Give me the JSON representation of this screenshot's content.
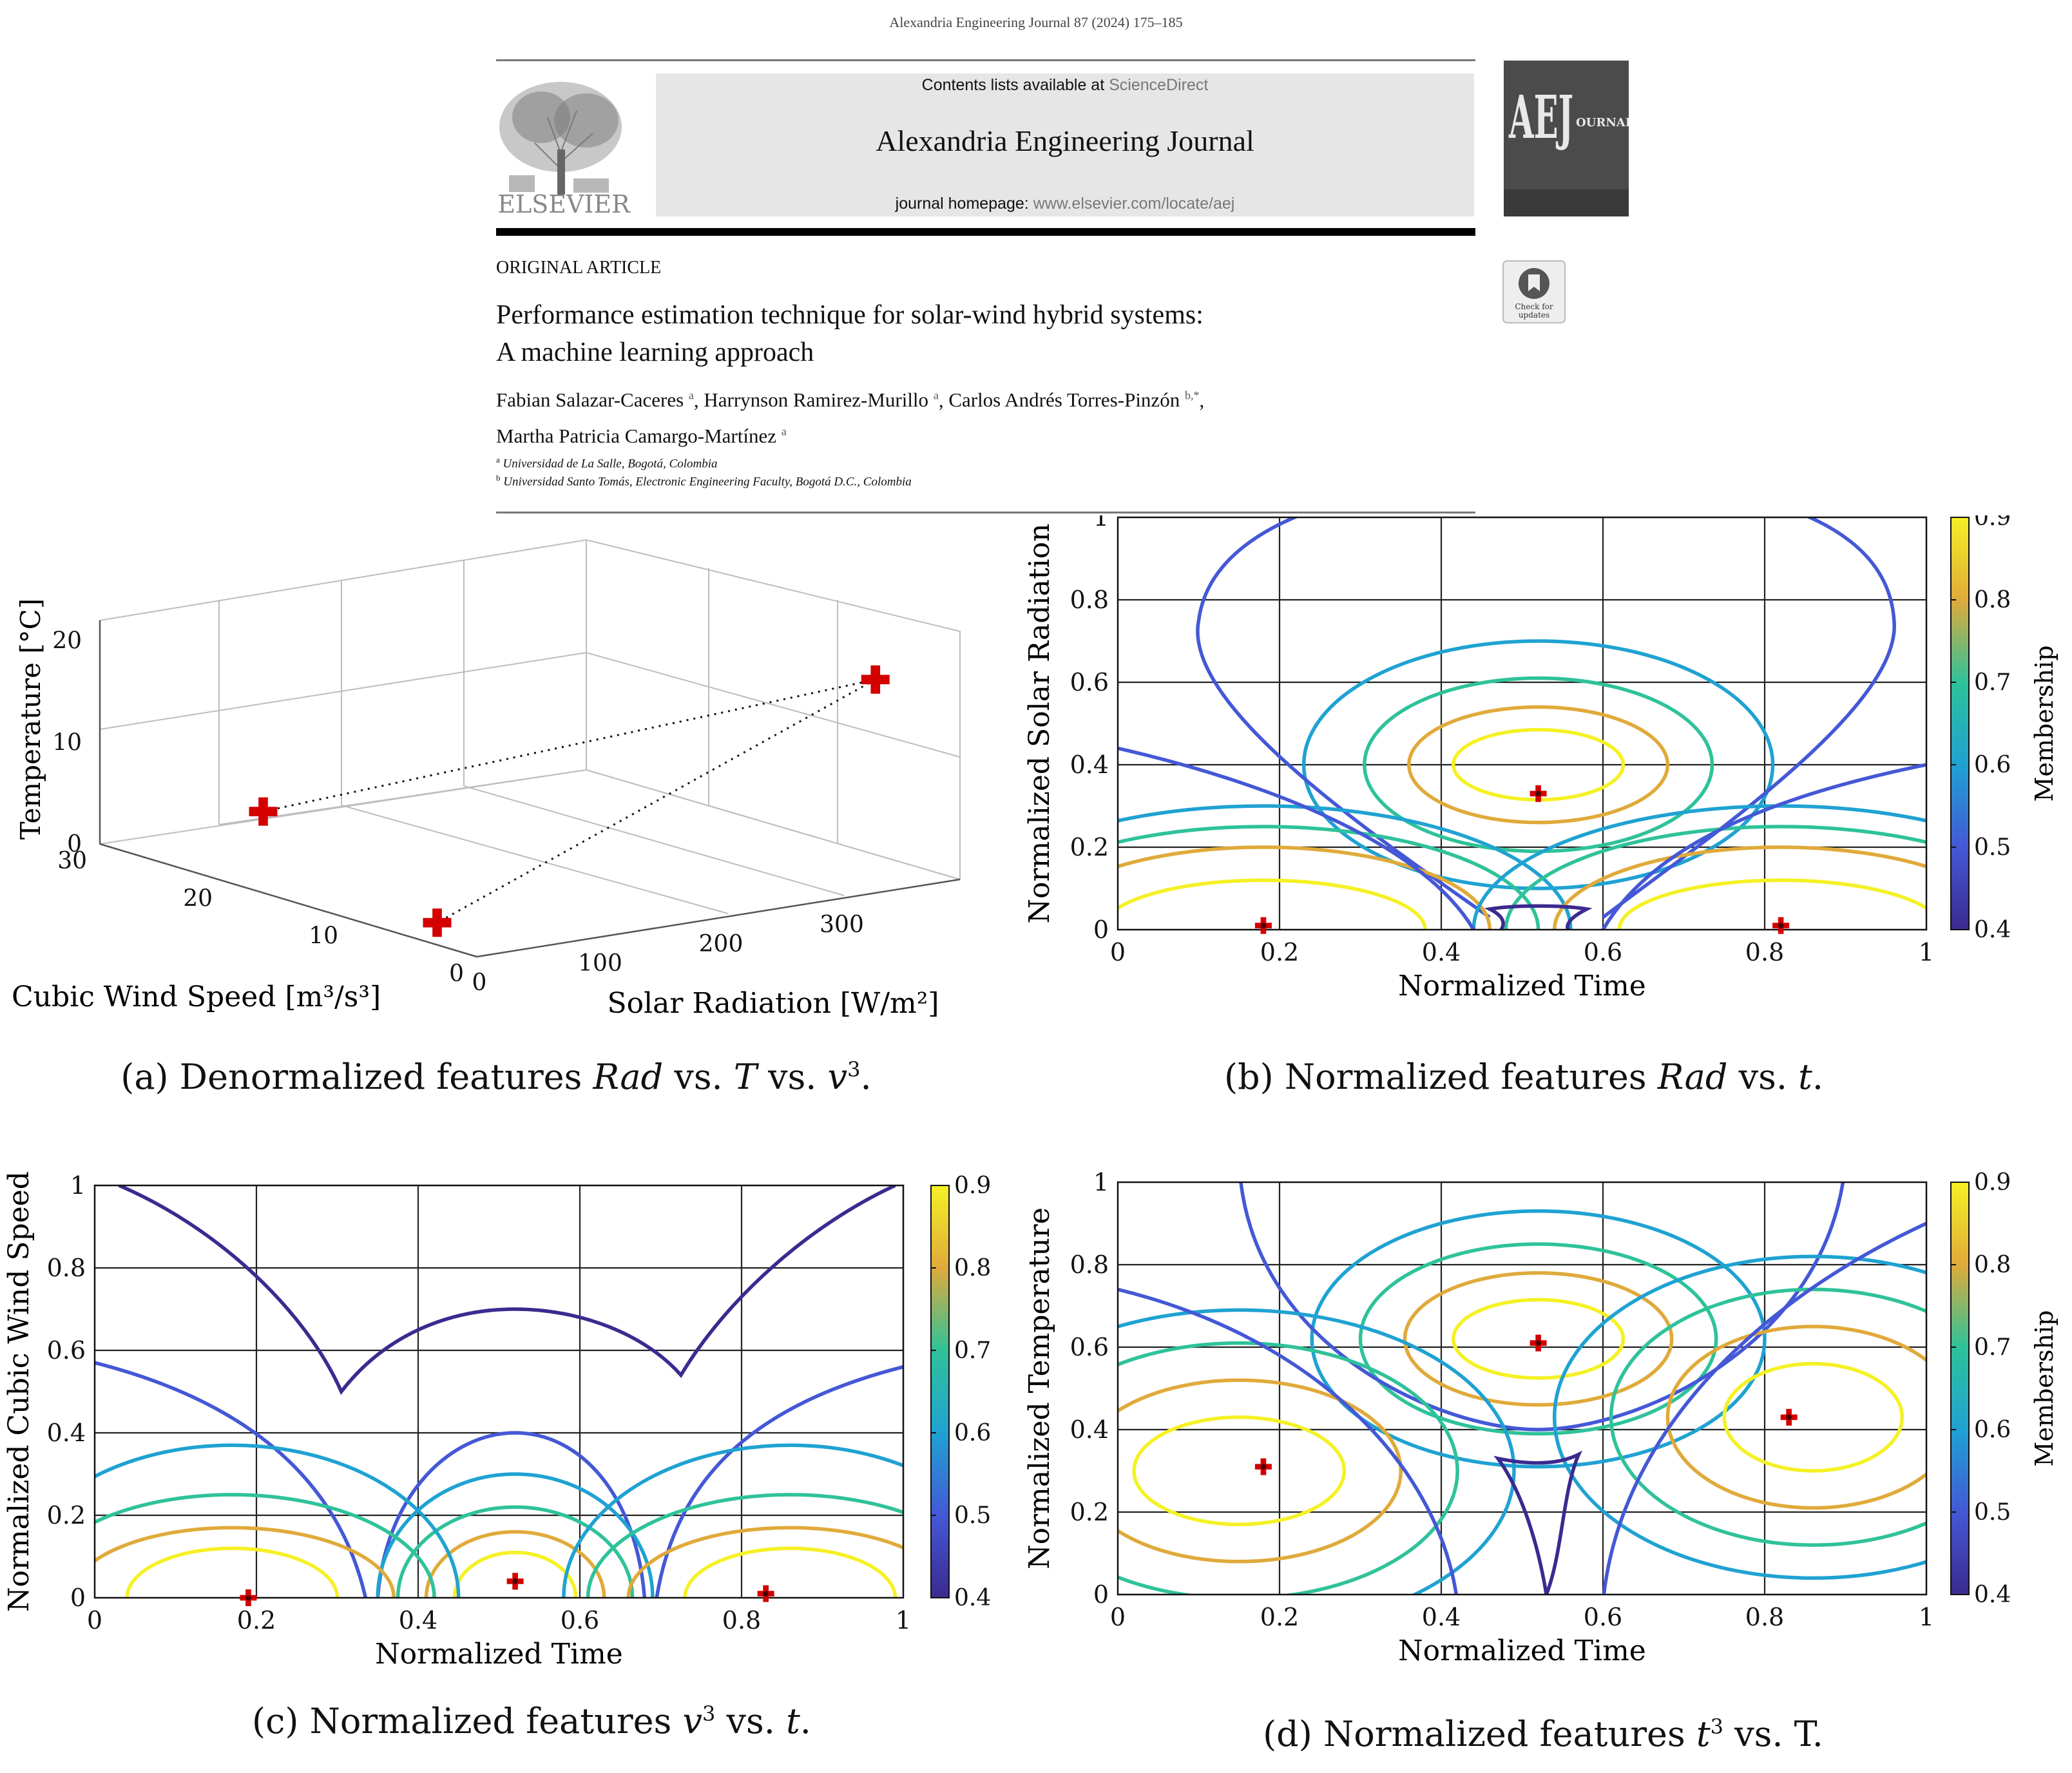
{
  "header": {
    "citation": "Alexandria Engineering Journal 87 (2024) 175–185",
    "contents_prefix": "Contents lists available at ",
    "contents_link": "ScienceDirect",
    "journal_name": "Alexandria Engineering Journal",
    "homepage_prefix": "journal homepage: ",
    "homepage_url": "www.elsevier.com/locate/aej",
    "publisher": "ELSEVIER",
    "cover_letters": "AEJ",
    "cover_word": "OURNAL",
    "check_badge_l1": "Check for",
    "check_badge_l2": "updates"
  },
  "article": {
    "section": "ORIGINAL ARTICLE",
    "title_line1": "Performance estimation technique for solar-wind hybrid systems:",
    "title_line2": "A machine learning approach",
    "authors": [
      {
        "name": "Fabian Salazar-Caceres",
        "aff": "a"
      },
      {
        "name": "Harrynson Ramirez-Murillo",
        "aff": "a"
      },
      {
        "name": "Carlos Andrés Torres-Pinzón",
        "aff": "b,*"
      },
      {
        "name": "Martha Patricia Camargo-Martínez",
        "aff": "a"
      }
    ],
    "affiliations": [
      {
        "mark": "a",
        "text": "Universidad de La Salle, Bogotá, Colombia"
      },
      {
        "mark": "b",
        "text": "Universidad Santo Tomás, Electronic Engineering Faculty, Bogotá D.C., Colombia"
      }
    ]
  },
  "colors": {
    "marker": "#d40000",
    "levels": {
      "0.4": "#3b2a8f",
      "0.5": "#4458d6",
      "0.6": "#1fa2d2",
      "0.7": "#2fc29a",
      "0.8": "#e0aa3a",
      "0.9": "#f5f125"
    }
  },
  "chart_data": [
    {
      "type": "scatter",
      "panel": "a",
      "caption_prefix": "(a) Denormalized features ",
      "caption_parts": [
        "Rad",
        " vs. ",
        "T",
        " vs. ",
        "v",
        "3",
        "."
      ],
      "xlabel": "Solar Radiation [W/m²]",
      "ylabel": "Cubic Wind Speed [m³/s³]",
      "zlabel": "Temperature [°C]",
      "x_ticks": [
        "0",
        "100",
        "200",
        "300"
      ],
      "y_ticks": [
        "0",
        "10",
        "20",
        "30"
      ],
      "z_ticks": [
        "0",
        "10",
        "20"
      ],
      "points": [
        {
          "rad": 330,
          "v3": 0,
          "T": 21
        },
        {
          "rad": 0,
          "v3": 17,
          "T": 8
        },
        {
          "rad": 40,
          "v3": 7,
          "T": 0
        }
      ]
    },
    {
      "type": "contour",
      "panel": "b",
      "caption_parts": [
        "(b) Normalized features ",
        "Rad",
        " vs. ",
        "t",
        "."
      ],
      "xlabel": "Normalized Time",
      "ylabel": "Normalized Solar Radiation",
      "colorbar_label": "Membership",
      "x_ticks": [
        "0",
        "0.2",
        "0.4",
        "0.6",
        "0.8",
        "1"
      ],
      "y_ticks": [
        "0",
        "0.2",
        "0.4",
        "0.6",
        "0.8",
        "1"
      ],
      "colorbar_ticks": [
        "0.4",
        "0.5",
        "0.6",
        "0.7",
        "0.8",
        "0.9"
      ],
      "xlim": [
        0,
        1
      ],
      "ylim": [
        0,
        1
      ],
      "levels": [
        0.4,
        0.5,
        0.6,
        0.7,
        0.8,
        0.9
      ],
      "centers": [
        {
          "x": 0.52,
          "y": 0.33
        },
        {
          "x": 0.18,
          "y": 0.01
        },
        {
          "x": 0.82,
          "y": 0.01
        }
      ]
    },
    {
      "type": "contour",
      "panel": "c",
      "caption_parts": [
        "(c) Normalized features ",
        "v",
        "3",
        " vs. ",
        "t",
        "."
      ],
      "xlabel": "Normalized Time",
      "ylabel": "Normalized Cubic Wind Speed",
      "x_ticks": [
        "0",
        "0.2",
        "0.4",
        "0.6",
        "0.8",
        "1"
      ],
      "y_ticks": [
        "0",
        "0.2",
        "0.4",
        "0.6",
        "0.8",
        "1"
      ],
      "colorbar_ticks": [
        "0.4",
        "0.5",
        "0.6",
        "0.7",
        "0.8",
        "0.9"
      ],
      "xlim": [
        0,
        1
      ],
      "ylim": [
        0,
        1
      ],
      "levels": [
        0.4,
        0.5,
        0.6,
        0.7,
        0.8,
        0.9
      ],
      "centers": [
        {
          "x": 0.19,
          "y": 0.0
        },
        {
          "x": 0.52,
          "y": 0.04
        },
        {
          "x": 0.83,
          "y": 0.01
        }
      ]
    },
    {
      "type": "contour",
      "panel": "d",
      "caption_parts": [
        "(d) Normalized features ",
        "t",
        "3",
        " vs. T."
      ],
      "xlabel": "Normalized Time",
      "ylabel": "Normalized Temperature",
      "colorbar_label": "Membership",
      "x_ticks": [
        "0",
        "0.2",
        "0.4",
        "0.6",
        "0.8",
        "1"
      ],
      "y_ticks": [
        "0",
        "0.2",
        "0.4",
        "0.6",
        "0.8",
        "1"
      ],
      "colorbar_ticks": [
        "0.4",
        "0.5",
        "0.6",
        "0.7",
        "0.8",
        "0.9"
      ],
      "xlim": [
        0,
        1
      ],
      "ylim": [
        0,
        1
      ],
      "levels": [
        0.4,
        0.5,
        0.6,
        0.7,
        0.8,
        0.9
      ],
      "centers": [
        {
          "x": 0.52,
          "y": 0.61
        },
        {
          "x": 0.18,
          "y": 0.31
        },
        {
          "x": 0.83,
          "y": 0.43
        }
      ]
    }
  ]
}
